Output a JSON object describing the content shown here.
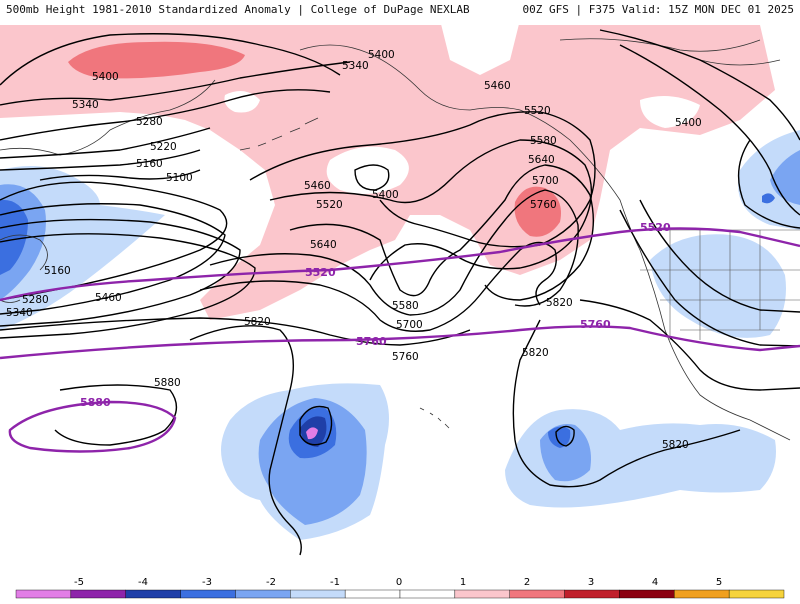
{
  "header": {
    "title_left": "500mb Height 1981-2010 Standardized Anomaly | College of DuPage NEXLAB",
    "title_right": "00Z GFS | F375 Valid: 15Z MON DEC 01 2025"
  },
  "contour_labels": {
    "h5400_nw": "5400",
    "h5400_n": "5400",
    "h5340_nw": "5340",
    "h5340_n": "5340",
    "h5280_nw": "5280",
    "h5220_nw": "5220",
    "h5160_nw": "5160",
    "h5100_nw": "5100",
    "h5400_mid": "5400",
    "h5460_mid": "5460",
    "h5520_mid": "5520",
    "h5460_n": "5460",
    "h5520_n": "5520",
    "h5580_n": "5580",
    "h5640_n": "5640",
    "h5700_n": "5700",
    "h5760_n": "5760",
    "h5400_ne": "5400",
    "h5160_w": "5160",
    "h5280_w": "5280",
    "h5340_w": "5340",
    "h5460_w": "5460",
    "h5640_mid": "5640",
    "h5580_mid": "5580",
    "h5700_mid": "5700",
    "h5760_mid": "5760",
    "h5820_mid": "5820",
    "h5820_c": "5820",
    "h5820_e": "5820",
    "h5820_s": "5820",
    "h5880_w": "5880"
  },
  "reference_labels": {
    "r5520_mid": "5520",
    "r5520_e": "5520",
    "r5760_mid": "5760",
    "r5760_e": "5760",
    "r5880_w": "5880"
  },
  "colorbar": {
    "ticks": [
      "-5",
      "-4",
      "-3",
      "-2",
      "-1",
      "0",
      "1",
      "2",
      "3",
      "4",
      "5"
    ],
    "colors": [
      "#e27ee6",
      "#8e24aa",
      "#1f3fa8",
      "#3b6fe0",
      "#7aa5f2",
      "#c4dbfa",
      "#ffffff",
      "#ffffff",
      "#fbc6cc",
      "#f0767d",
      "#c0202c",
      "#8b0010",
      "#f0a020",
      "#f6d33c"
    ]
  },
  "colors": {
    "positive_anomaly_light": "#fbc6cc",
    "positive_anomaly_mid": "#f0767d",
    "negative_anomaly_light": "#c4dbfa",
    "negative_anomaly_mid": "#7aa5f2",
    "negative_anomaly_strong": "#3b6fe0",
    "reference_contour": "#8e24aa"
  }
}
